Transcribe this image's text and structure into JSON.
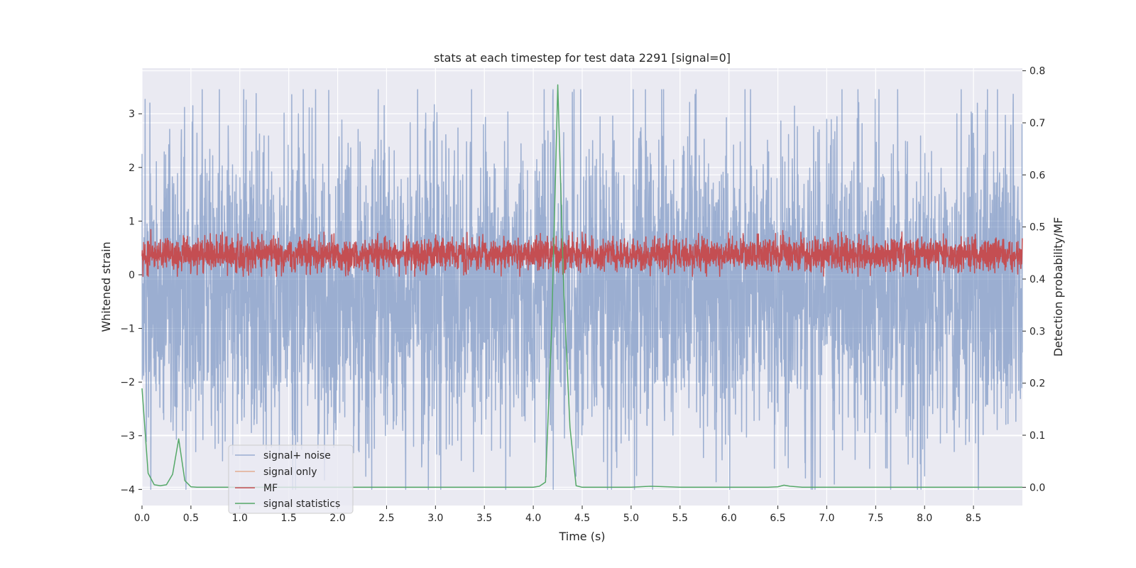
{
  "chart_data": {
    "type": "line",
    "title": "stats at each timestep for test data 2291 [signal=0]",
    "xlabel": "Time (s)",
    "ylabel": "Whitened strain",
    "ylabel_right": "Detection probability/MF",
    "xlim": [
      0.0,
      9.0
    ],
    "ylim": [
      -4.3,
      3.85
    ],
    "ylim_right": [
      -0.035,
      0.805
    ],
    "xticks": [
      "0.0",
      "0.5",
      "1.0",
      "1.5",
      "2.0",
      "2.5",
      "3.0",
      "3.5",
      "4.0",
      "4.5",
      "5.0",
      "5.5",
      "6.0",
      "6.5",
      "7.0",
      "7.5",
      "8.0",
      "8.5"
    ],
    "yticks": [
      "−4",
      "−3",
      "−2",
      "−1",
      "0",
      "1",
      "2",
      "3"
    ],
    "yticks_right": [
      "0.0",
      "0.1",
      "0.2",
      "0.3",
      "0.4",
      "0.5",
      "0.6",
      "0.7",
      "0.8"
    ],
    "grid": true,
    "legend_position": "lower-left",
    "legend": [
      "signal+ noise",
      "signal only",
      "MF",
      "signal statistics"
    ],
    "colors": {
      "signal_noise": "#4c72b0",
      "signal_only": "#dd8452",
      "mf": "#c44e52",
      "signal_statistics": "#55a868",
      "axes_bg": "#eaeaf2",
      "grid": "#ffffff"
    },
    "series": [
      {
        "name": "signal+ noise",
        "axis": "left",
        "kind": "noise",
        "sample_rate_hz": 409.6,
        "range": [
          -4.0,
          3.45
        ],
        "spikes": [
          [
            0.08,
            3.2
          ],
          [
            0.09,
            -4.0
          ],
          [
            0.52,
            3.15
          ],
          [
            0.85,
            -3.1
          ],
          [
            1.27,
            -3.25
          ],
          [
            2.22,
            -3.3
          ],
          [
            4.4,
            3.4
          ],
          [
            5.22,
            -4.0
          ],
          [
            5.93,
            -3.45
          ],
          [
            7.32,
            3.45
          ],
          [
            8.0,
            -3.75
          ],
          [
            8.33,
            3.0
          ]
        ]
      },
      {
        "name": "signal only",
        "axis": "left",
        "kind": "empty",
        "x": [],
        "y": []
      },
      {
        "name": "MF",
        "axis": "right",
        "kind": "noise",
        "sample_rate_hz": 409.6,
        "range": [
          0.405,
          0.49
        ],
        "spikes": [
          [
            0.09,
            0.495
          ],
          [
            4.4,
            0.49
          ],
          [
            6.55,
            0.493
          ],
          [
            7.15,
            0.49
          ]
        ]
      },
      {
        "name": "signal statistics",
        "axis": "right",
        "x": [
          0.0,
          0.0625,
          0.125,
          0.1875,
          0.25,
          0.3125,
          0.375,
          0.4375,
          0.5,
          0.5625,
          0.625,
          1.0,
          2.0,
          3.0,
          3.5,
          4.0,
          4.0625,
          4.125,
          4.1875,
          4.25,
          4.3125,
          4.375,
          4.4375,
          4.5,
          5.0,
          5.2,
          5.5,
          6.0,
          6.4,
          6.5,
          6.5625,
          6.625,
          6.75,
          7.0,
          8.0,
          9.0
        ],
        "y": [
          0.19,
          0.027,
          0.005,
          0.003,
          0.005,
          0.025,
          0.093,
          0.013,
          0.001,
          0.0,
          0.0,
          0.0,
          0.0,
          0.0,
          0.0,
          0.0,
          0.002,
          0.01,
          0.3,
          0.773,
          0.37,
          0.115,
          0.003,
          0.0,
          0.0,
          0.002,
          0.0,
          0.0,
          0.0,
          0.001,
          0.004,
          0.002,
          0.0,
          0.0,
          0.0,
          0.0
        ]
      }
    ]
  }
}
